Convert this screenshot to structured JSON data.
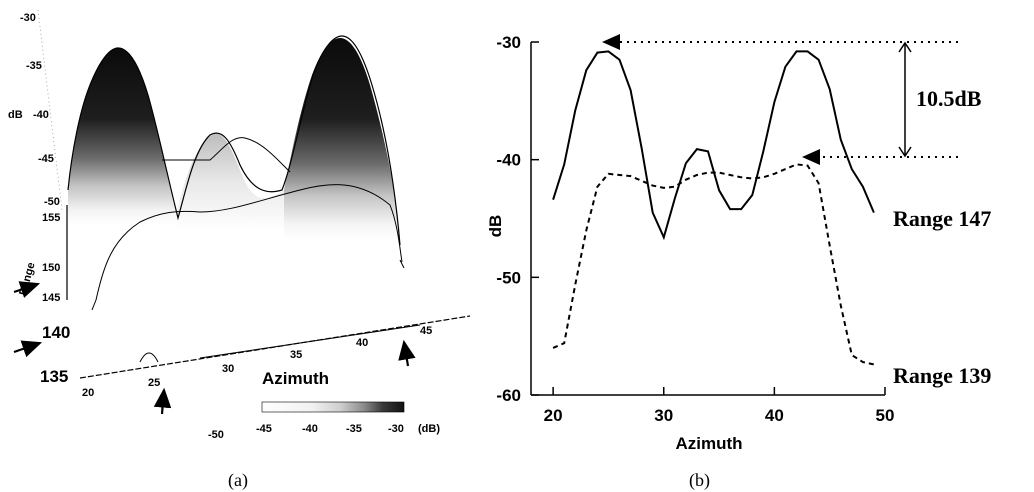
{
  "chart_data": [
    {
      "type": "surface",
      "caption": "(a)",
      "zlabel": "dB",
      "ylabel": "Range",
      "xlabel": "Azimuth",
      "z_ticks": [
        "-30",
        "-35",
        "-40",
        "-45",
        "-50"
      ],
      "range_ticks": [
        "155",
        "150",
        "145",
        "140",
        "135"
      ],
      "azimuth_ticks": [
        "20",
        "25",
        "30",
        "35",
        "40",
        "45"
      ],
      "zlim": [
        -50,
        -30
      ],
      "colorbar": {
        "ticks": [
          "-50",
          "-45",
          "-40",
          "-35",
          "-30"
        ],
        "unit": "(dB)"
      },
      "profile_azimuth": [
        20,
        22,
        24,
        26,
        28,
        30,
        32,
        34,
        36,
        38,
        40,
        42,
        44,
        46,
        48
      ],
      "profile_db": [
        -45.5,
        -36,
        -32,
        -36,
        -43,
        -46.5,
        -42,
        -44,
        -45.5,
        -41,
        -34,
        -32,
        -36,
        -44,
        -48
      ],
      "markers": [
        "arrow-range-145",
        "arrow-range-140",
        "arrow-azimuth-25",
        "arrow-azimuth-43"
      ]
    },
    {
      "type": "line",
      "caption": "(b)",
      "xlabel": "Azimuth",
      "ylabel": "dB",
      "xlim": [
        18,
        50
      ],
      "ylim": [
        -60,
        -30
      ],
      "x_ticks": [
        20,
        30,
        40,
        50
      ],
      "y_ticks": [
        -30,
        -40,
        -50,
        -60
      ],
      "series": [
        {
          "name": "Range 147",
          "style": "solid",
          "x": [
            20,
            21,
            22,
            23,
            24,
            25,
            26,
            27,
            28,
            29,
            30,
            31,
            32,
            33,
            34,
            35,
            36,
            37,
            38,
            39,
            40,
            41,
            42,
            43,
            44,
            45,
            46,
            47,
            48,
            49
          ],
          "y": [
            -43.4,
            -40.4,
            -35.8,
            -32.4,
            -30.9,
            -30.8,
            -31.5,
            -34.1,
            -39.0,
            -44.5,
            -46.6,
            -43.3,
            -40.3,
            -39.1,
            -39.3,
            -42.6,
            -44.2,
            -44.2,
            -43.0,
            -39.3,
            -35.1,
            -32.1,
            -30.8,
            -30.8,
            -31.5,
            -34.0,
            -38.3,
            -40.8,
            -42.3,
            -44.5
          ]
        },
        {
          "name": "Range 139",
          "style": "dashed",
          "x": [
            20,
            21,
            22,
            23,
            24,
            25,
            26,
            27,
            28,
            29,
            30,
            31,
            32,
            33,
            34,
            35,
            36,
            37,
            38,
            39,
            40,
            41,
            42,
            43,
            44,
            45,
            46,
            47,
            48,
            49
          ],
          "y": [
            -56.0,
            -55.6,
            -50.6,
            -46.0,
            -42.3,
            -41.2,
            -41.3,
            -41.4,
            -41.8,
            -42.2,
            -42.4,
            -42.3,
            -41.7,
            -41.3,
            -41.1,
            -41.1,
            -41.3,
            -41.5,
            -41.6,
            -41.5,
            -41.2,
            -40.8,
            -40.4,
            -40.5,
            -42.0,
            -47.3,
            -52.4,
            -56.6,
            -57.2,
            -57.4
          ]
        }
      ],
      "annotations": {
        "difference_label": "10.5dB",
        "legend_labels": [
          "Range 147",
          "Range 139"
        ]
      }
    }
  ]
}
